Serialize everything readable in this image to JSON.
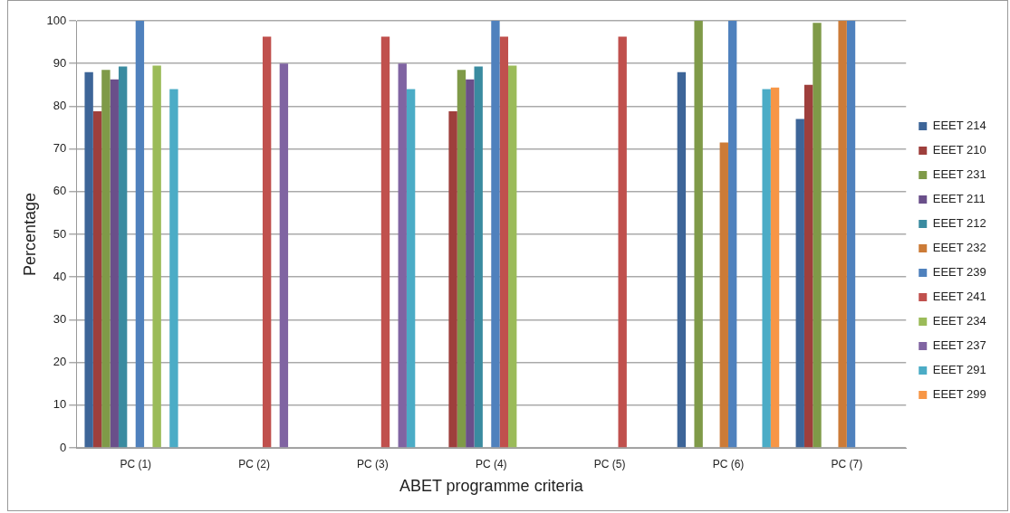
{
  "chart_data": {
    "type": "bar",
    "xlabel": "ABET programme criteria",
    "ylabel": "Percentage",
    "categories": [
      "PC (1)",
      "PC (2)",
      "PC (3)",
      "PC (4)",
      "PC (5)",
      "PC (6)",
      "PC (7)"
    ],
    "series": [
      {
        "name": "EEET 214",
        "color": "#3d6598",
        "values": [
          88,
          null,
          null,
          null,
          null,
          88,
          77
        ]
      },
      {
        "name": "EEET 210",
        "color": "#9e3f3c",
        "values": [
          78.8,
          null,
          null,
          78.8,
          null,
          null,
          85
        ]
      },
      {
        "name": "EEET 231",
        "color": "#7f9a48",
        "values": [
          88.5,
          null,
          null,
          88.5,
          null,
          100,
          99.5
        ]
      },
      {
        "name": "EEET 211",
        "color": "#6a4f8a",
        "values": [
          86.3,
          null,
          null,
          86.3,
          null,
          null,
          null
        ]
      },
      {
        "name": "EEET 212",
        "color": "#3a8ba0",
        "values": [
          89.3,
          null,
          null,
          89.3,
          null,
          null,
          null
        ]
      },
      {
        "name": "EEET 232",
        "color": "#cc7b37",
        "values": [
          null,
          null,
          null,
          null,
          null,
          71.5,
          100
        ]
      },
      {
        "name": "EEET 239",
        "color": "#4f81bd",
        "values": [
          100,
          null,
          null,
          100,
          null,
          100,
          100
        ]
      },
      {
        "name": "EEET 241",
        "color": "#c0504d",
        "values": [
          null,
          96.3,
          96.3,
          96.3,
          96.3,
          null,
          null
        ]
      },
      {
        "name": "EEET 234",
        "color": "#9bbb59",
        "values": [
          89.5,
          null,
          null,
          89.5,
          null,
          null,
          null
        ]
      },
      {
        "name": "EEET 237",
        "color": "#8064a2",
        "values": [
          null,
          90,
          90,
          null,
          null,
          null,
          null
        ]
      },
      {
        "name": "EEET 291",
        "color": "#4bacc6",
        "values": [
          84,
          null,
          84,
          null,
          null,
          84,
          null
        ]
      },
      {
        "name": "EEET 299",
        "color": "#f79646",
        "values": [
          null,
          null,
          null,
          null,
          null,
          84.4,
          null
        ]
      }
    ],
    "ylim": [
      0,
      100
    ],
    "yticks": [
      0,
      10,
      20,
      30,
      40,
      50,
      60,
      70,
      80,
      90,
      100
    ],
    "grid": "y",
    "legend": "right"
  }
}
